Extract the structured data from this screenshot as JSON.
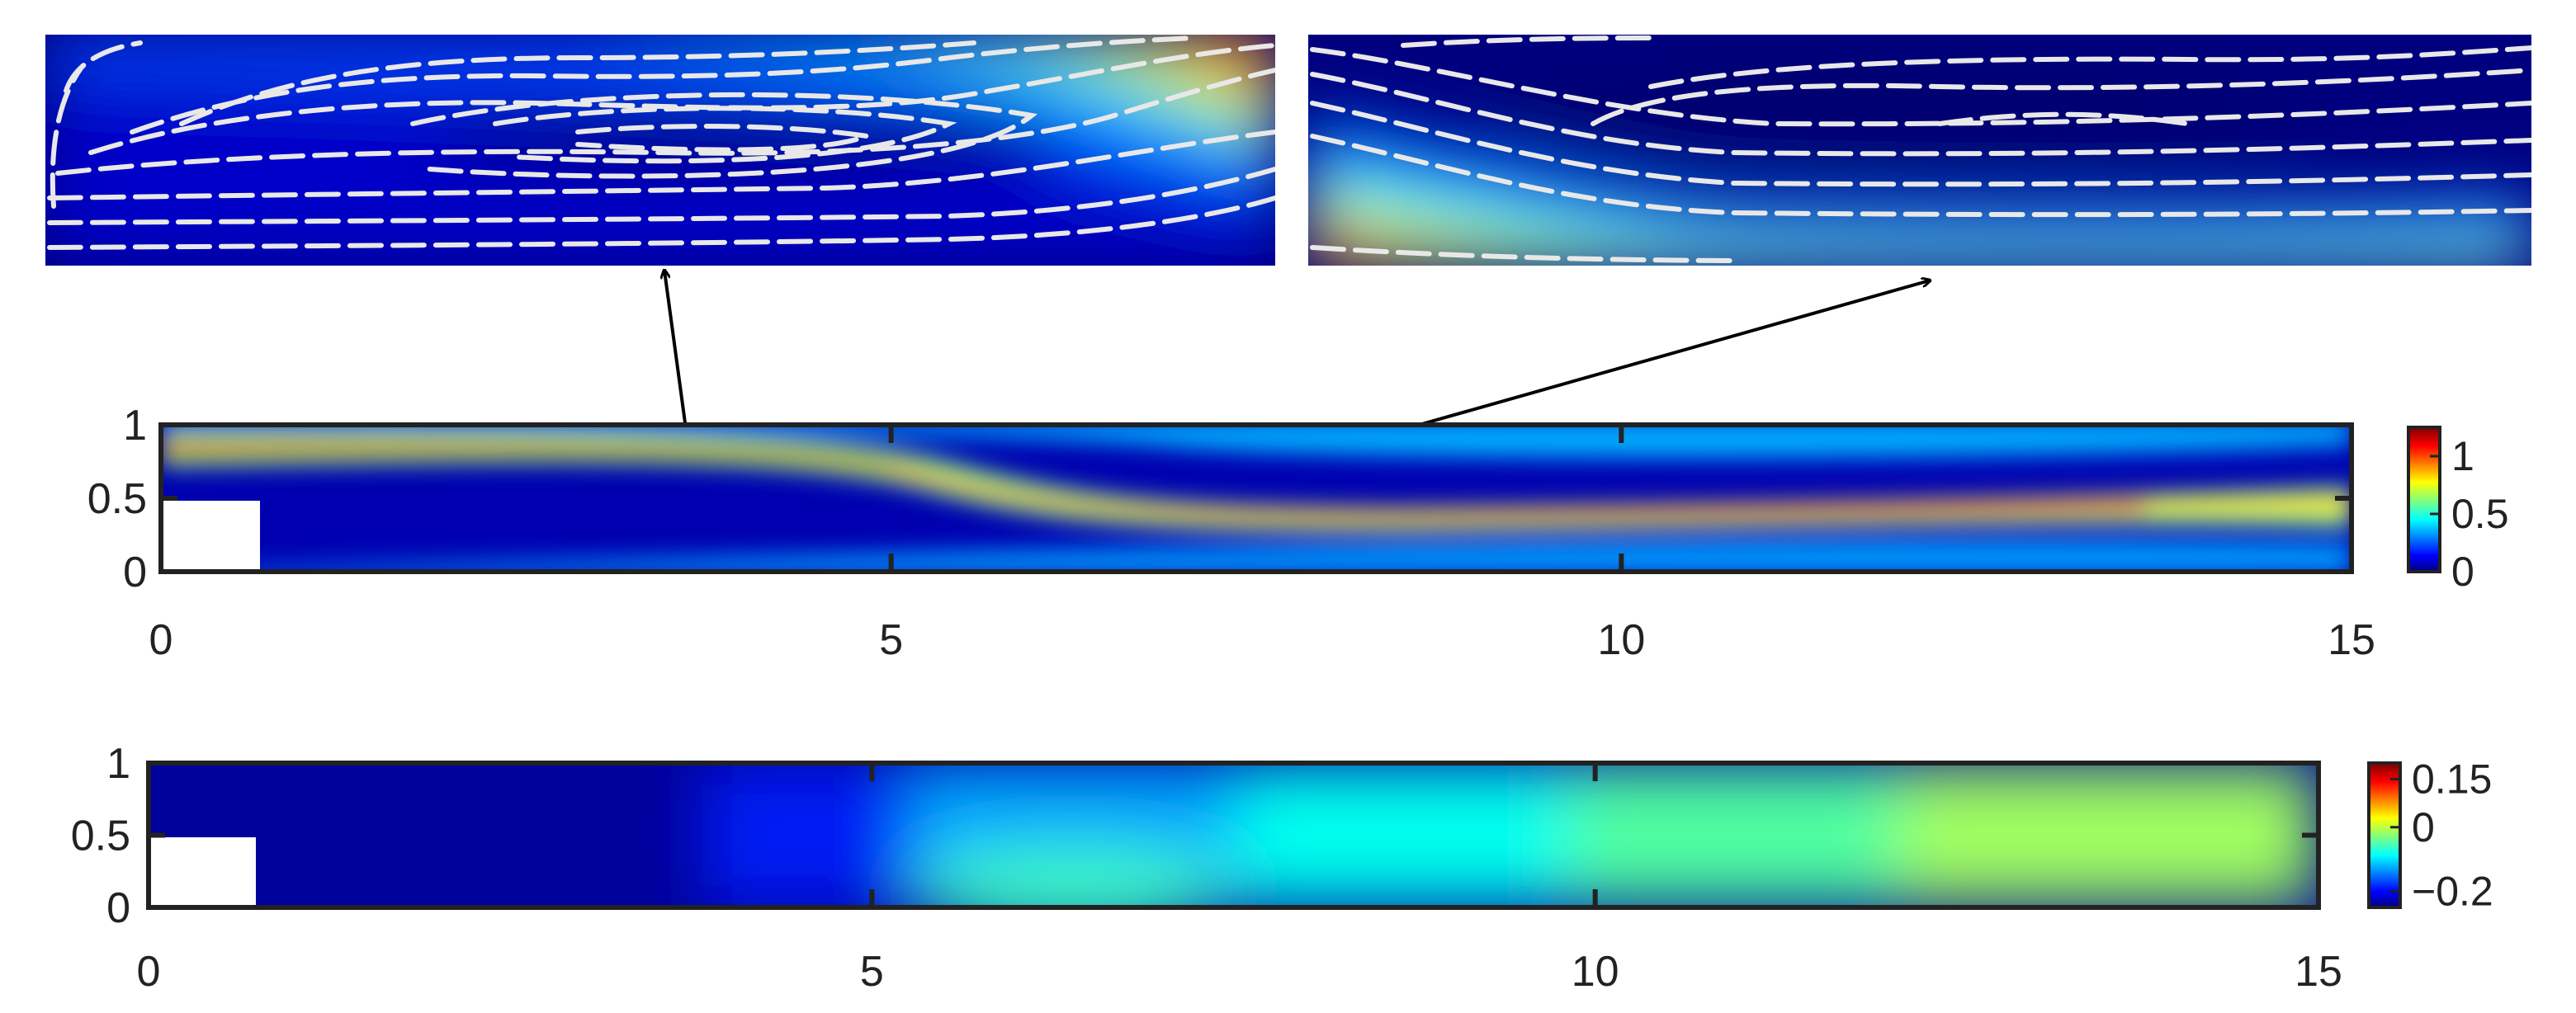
{
  "chart_data": [
    {
      "type": "heatmap",
      "title": "",
      "xlabel": "",
      "ylabel": "",
      "xlim": [
        0,
        15
      ],
      "ylim": [
        0,
        1
      ],
      "x_ticks": [
        {
          "value": 0,
          "label": "0"
        },
        {
          "value": 5,
          "label": "5"
        },
        {
          "value": 10,
          "label": "10"
        },
        {
          "value": 15,
          "label": "15"
        }
      ],
      "y_ticks": [
        {
          "value": 0,
          "label": "0"
        },
        {
          "value": 0.5,
          "label": "0.5"
        },
        {
          "value": 1,
          "label": "1"
        }
      ],
      "colorbar": {
        "range": [
          0,
          1.25
        ],
        "colormap": "jet",
        "ticks": [
          {
            "value": 0,
            "label": "0"
          },
          {
            "value": 0.5,
            "label": "0.5"
          },
          {
            "value": 1,
            "label": "1"
          }
        ]
      },
      "step": {
        "x": [
          0,
          0.7
        ],
        "y": [
          0,
          0.5
        ]
      },
      "annotations": [
        {
          "type": "arrow",
          "from": {
            "x": 3.7,
            "y": 0.18
          },
          "to_inset": "left-inset"
        },
        {
          "type": "arrow",
          "from": {
            "x": 7.8,
            "y": 0.8
          },
          "to_inset": "right-inset"
        }
      ]
    },
    {
      "type": "heatmap",
      "title": "",
      "xlabel": "",
      "ylabel": "",
      "xlim": [
        0,
        15
      ],
      "ylim": [
        0,
        1
      ],
      "x_ticks": [
        {
          "value": 0,
          "label": "0"
        },
        {
          "value": 5,
          "label": "5"
        },
        {
          "value": 10,
          "label": "10"
        },
        {
          "value": 15,
          "label": "15"
        }
      ],
      "y_ticks": [
        {
          "value": 0,
          "label": "0"
        },
        {
          "value": 0.5,
          "label": "0.5"
        },
        {
          "value": 1,
          "label": "1"
        }
      ],
      "colorbar": {
        "range": [
          -0.25,
          0.2
        ],
        "colormap": "jet",
        "ticks": [
          {
            "value": 0.15,
            "label": "0.15"
          },
          {
            "value": 0,
            "label": "0"
          },
          {
            "value": -0.2,
            "label": "−0.2"
          }
        ]
      },
      "step": {
        "x": [
          0,
          0.7
        ],
        "y": [
          0,
          0.5
        ]
      }
    }
  ],
  "insets": [
    {
      "name": "left-inset",
      "content": "zoomed recirculation region with streamlines"
    },
    {
      "name": "right-inset",
      "content": "zoomed upper recirculation region with streamlines"
    }
  ],
  "colors": {
    "jet_dark_blue": "#00007f",
    "jet_blue": "#0000ff",
    "jet_cyan": "#00ffff",
    "jet_yellow": "#ffff00",
    "jet_red": "#ff0000",
    "jet_dark_red": "#7f0000",
    "frame": "#222222",
    "streamline": "#e8e8e8"
  }
}
